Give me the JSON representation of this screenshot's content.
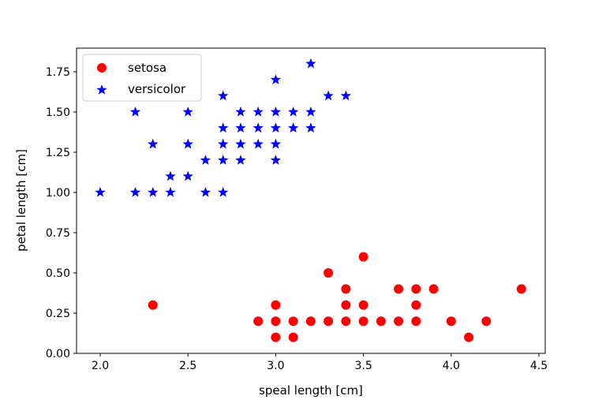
{
  "chart_data": {
    "type": "scatter",
    "title": "",
    "xlabel": "speal length [cm]",
    "ylabel": "petal length [cm]",
    "xlim": [
      1.865,
      4.536
    ],
    "ylim": [
      0,
      1.897
    ],
    "xticks": [
      "2.0",
      "2.5",
      "3.0",
      "3.5",
      "4.0",
      "4.5"
    ],
    "yticks": [
      "0.00",
      "0.25",
      "0.50",
      "0.75",
      "1.00",
      "1.25",
      "1.50",
      "1.75"
    ],
    "grid": false,
    "legend_position": "top-left",
    "series": [
      {
        "name": "setosa",
        "color": "#ff0000",
        "marker": "circle",
        "points": [
          [
            2.3,
            0.3
          ],
          [
            2.9,
            0.2
          ],
          [
            3.0,
            0.1
          ],
          [
            3.0,
            0.2
          ],
          [
            3.0,
            0.3
          ],
          [
            3.1,
            0.1
          ],
          [
            3.1,
            0.2
          ],
          [
            3.2,
            0.2
          ],
          [
            3.3,
            0.2
          ],
          [
            3.3,
            0.5
          ],
          [
            3.4,
            0.2
          ],
          [
            3.4,
            0.3
          ],
          [
            3.4,
            0.4
          ],
          [
            3.5,
            0.2
          ],
          [
            3.5,
            0.3
          ],
          [
            3.5,
            0.6
          ],
          [
            3.6,
            0.2
          ],
          [
            3.7,
            0.2
          ],
          [
            3.7,
            0.4
          ],
          [
            3.8,
            0.2
          ],
          [
            3.8,
            0.3
          ],
          [
            3.8,
            0.4
          ],
          [
            3.9,
            0.4
          ],
          [
            4.0,
            0.2
          ],
          [
            4.1,
            0.1
          ],
          [
            4.2,
            0.2
          ],
          [
            4.4,
            0.4
          ]
        ]
      },
      {
        "name": "versicolor",
        "color": "#0000ff",
        "marker": "star",
        "points": [
          [
            2.0,
            1.0
          ],
          [
            2.2,
            1.0
          ],
          [
            2.2,
            1.5
          ],
          [
            2.3,
            1.0
          ],
          [
            2.3,
            1.3
          ],
          [
            2.4,
            1.0
          ],
          [
            2.4,
            1.1
          ],
          [
            2.5,
            1.1
          ],
          [
            2.5,
            1.3
          ],
          [
            2.5,
            1.5
          ],
          [
            2.6,
            1.0
          ],
          [
            2.6,
            1.2
          ],
          [
            2.7,
            1.0
          ],
          [
            2.7,
            1.2
          ],
          [
            2.7,
            1.3
          ],
          [
            2.7,
            1.4
          ],
          [
            2.7,
            1.6
          ],
          [
            2.8,
            1.2
          ],
          [
            2.8,
            1.3
          ],
          [
            2.8,
            1.4
          ],
          [
            2.8,
            1.5
          ],
          [
            2.9,
            1.3
          ],
          [
            2.9,
            1.4
          ],
          [
            2.9,
            1.5
          ],
          [
            3.0,
            1.2
          ],
          [
            3.0,
            1.3
          ],
          [
            3.0,
            1.4
          ],
          [
            3.0,
            1.5
          ],
          [
            3.0,
            1.7
          ],
          [
            3.1,
            1.4
          ],
          [
            3.1,
            1.5
          ],
          [
            3.2,
            1.4
          ],
          [
            3.2,
            1.5
          ],
          [
            3.2,
            1.8
          ],
          [
            3.3,
            1.6
          ],
          [
            3.4,
            1.6
          ]
        ]
      }
    ]
  }
}
